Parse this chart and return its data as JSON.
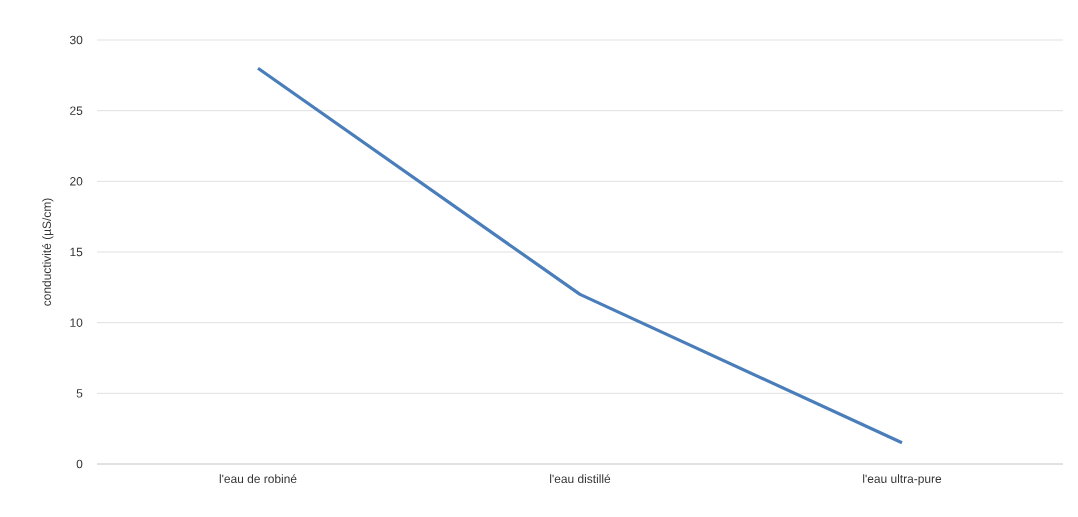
{
  "chart_data": {
    "type": "line",
    "ylabel": "conductivité (µS/cm)",
    "categories": [
      "l'eau de robiné",
      "l'eau distillé",
      "l'eau ultra-pure"
    ],
    "series": [
      {
        "color": "#4a7ebb",
        "values": [
          28,
          12,
          1.5
        ]
      }
    ],
    "ylim": [
      0,
      30
    ],
    "yticks": [
      0,
      5,
      10,
      15,
      20,
      25,
      30
    ],
    "grid": "y",
    "marker": "none",
    "line_style": "solid"
  }
}
